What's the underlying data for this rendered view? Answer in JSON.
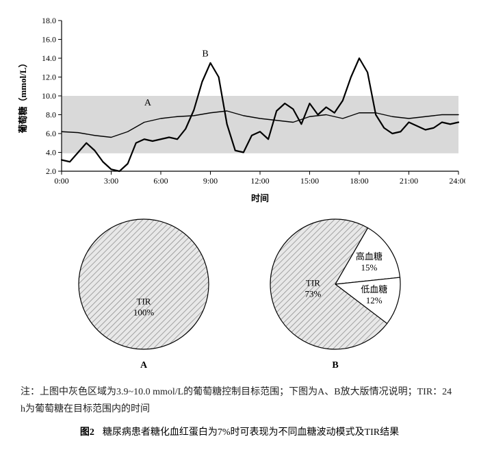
{
  "line_chart": {
    "type": "line",
    "xlim": [
      0,
      24
    ],
    "ylim": [
      2,
      18
    ],
    "xticks": [
      0,
      3,
      6,
      9,
      12,
      15,
      18,
      21,
      24
    ],
    "xtick_labels": [
      "0:00",
      "3:00",
      "6:00",
      "9:00",
      "12:00",
      "15:00",
      "18:00",
      "21:00",
      "24:00"
    ],
    "yticks": [
      2,
      4,
      6,
      8,
      10,
      12,
      14,
      16,
      18
    ],
    "ytick_labels": [
      "2.0",
      "4.0",
      "6.0",
      "8.0",
      "10.0",
      "12.0",
      "14.0",
      "16.0",
      "18.0"
    ],
    "xlabel": "时间",
    "ylabel": "葡萄糖（mmol/L）",
    "label_fontsize": 13,
    "tick_fontsize": 12,
    "axis_color": "#000000",
    "band": {
      "ymin": 3.9,
      "ymax": 10.0,
      "color": "#c9c9c9",
      "opacity": 0.7
    },
    "series": [
      {
        "name": "A",
        "label_pos": [
          5.0,
          9.0
        ],
        "color": "#000000",
        "width": 1.4,
        "points": [
          [
            0,
            6.2
          ],
          [
            1,
            6.1
          ],
          [
            2,
            5.8
          ],
          [
            3,
            5.6
          ],
          [
            4,
            6.2
          ],
          [
            5,
            7.2
          ],
          [
            6,
            7.6
          ],
          [
            7,
            7.8
          ],
          [
            8,
            7.9
          ],
          [
            9,
            8.2
          ],
          [
            10,
            8.4
          ],
          [
            11,
            7.9
          ],
          [
            12,
            7.6
          ],
          [
            13,
            7.4
          ],
          [
            14,
            7.2
          ],
          [
            15,
            7.8
          ],
          [
            16,
            8.0
          ],
          [
            17,
            7.6
          ],
          [
            18,
            8.2
          ],
          [
            19,
            8.2
          ],
          [
            20,
            7.8
          ],
          [
            21,
            7.6
          ],
          [
            22,
            7.8
          ],
          [
            23,
            8.0
          ],
          [
            24,
            8.0
          ]
        ]
      },
      {
        "name": "B",
        "label_pos": [
          8.5,
          14.2
        ],
        "color": "#000000",
        "width": 2.2,
        "points": [
          [
            0,
            3.2
          ],
          [
            0.5,
            3.0
          ],
          [
            1,
            4.0
          ],
          [
            1.5,
            5.0
          ],
          [
            2,
            4.2
          ],
          [
            2.5,
            3.0
          ],
          [
            3,
            2.2
          ],
          [
            3.5,
            2.0
          ],
          [
            4,
            2.8
          ],
          [
            4.5,
            5.0
          ],
          [
            5,
            5.4
          ],
          [
            5.5,
            5.2
          ],
          [
            6,
            5.4
          ],
          [
            6.5,
            5.6
          ],
          [
            7,
            5.4
          ],
          [
            7.5,
            6.5
          ],
          [
            8,
            8.5
          ],
          [
            8.5,
            11.5
          ],
          [
            9,
            13.5
          ],
          [
            9.5,
            12.0
          ],
          [
            10,
            7.0
          ],
          [
            10.5,
            4.2
          ],
          [
            11,
            4.0
          ],
          [
            11.5,
            5.8
          ],
          [
            12,
            6.2
          ],
          [
            12.5,
            5.4
          ],
          [
            13,
            8.4
          ],
          [
            13.5,
            9.2
          ],
          [
            14,
            8.6
          ],
          [
            14.5,
            7.0
          ],
          [
            15,
            9.2
          ],
          [
            15.5,
            8.0
          ],
          [
            16,
            8.8
          ],
          [
            16.5,
            8.2
          ],
          [
            17,
            9.5
          ],
          [
            17.5,
            12.0
          ],
          [
            18,
            14.0
          ],
          [
            18.5,
            12.5
          ],
          [
            19,
            8.0
          ],
          [
            19.5,
            6.6
          ],
          [
            20,
            6.0
          ],
          [
            20.5,
            6.2
          ],
          [
            21,
            7.2
          ],
          [
            21.5,
            6.8
          ],
          [
            22,
            6.4
          ],
          [
            22.5,
            6.6
          ],
          [
            23,
            7.2
          ],
          [
            23.5,
            7.0
          ],
          [
            24,
            7.2
          ]
        ]
      }
    ]
  },
  "pies": {
    "A": {
      "type": "pie",
      "radius": 95,
      "stroke": "#000000",
      "stroke_width": 1.2,
      "slices": [
        {
          "label": "TIR",
          "value_label": "100%",
          "pct": 100,
          "fill": "hatch"
        }
      ],
      "caption": "A"
    },
    "B": {
      "type": "pie",
      "radius": 95,
      "stroke": "#000000",
      "stroke_width": 1.2,
      "start_angle_deg": -60,
      "slices": [
        {
          "label": "高血糖",
          "value_label": "15%",
          "pct": 15,
          "fill": "#ffffff"
        },
        {
          "label": "低血糖",
          "value_label": "12%",
          "pct": 12,
          "fill": "#ffffff"
        },
        {
          "label": "TIR",
          "value_label": "73%",
          "pct": 73,
          "fill": "hatch"
        }
      ],
      "caption": "B"
    },
    "label_fontsize": 13,
    "hatch_color": "#8a8a8a",
    "hatch_bg": "#e8e8e8"
  },
  "note": {
    "prefix": "注：",
    "text": "上图中灰色区域为3.9~10.0 mmol/L的葡萄糖控制目标范围；下图为A、B放大版情况说明；TIR：24 h为葡萄糖在目标范围内的时间"
  },
  "figure_title": {
    "num": "图2",
    "text": "糖尿病患者糖化血红蛋白为7%时可表现为不同血糖波动模式及TIR结果"
  }
}
